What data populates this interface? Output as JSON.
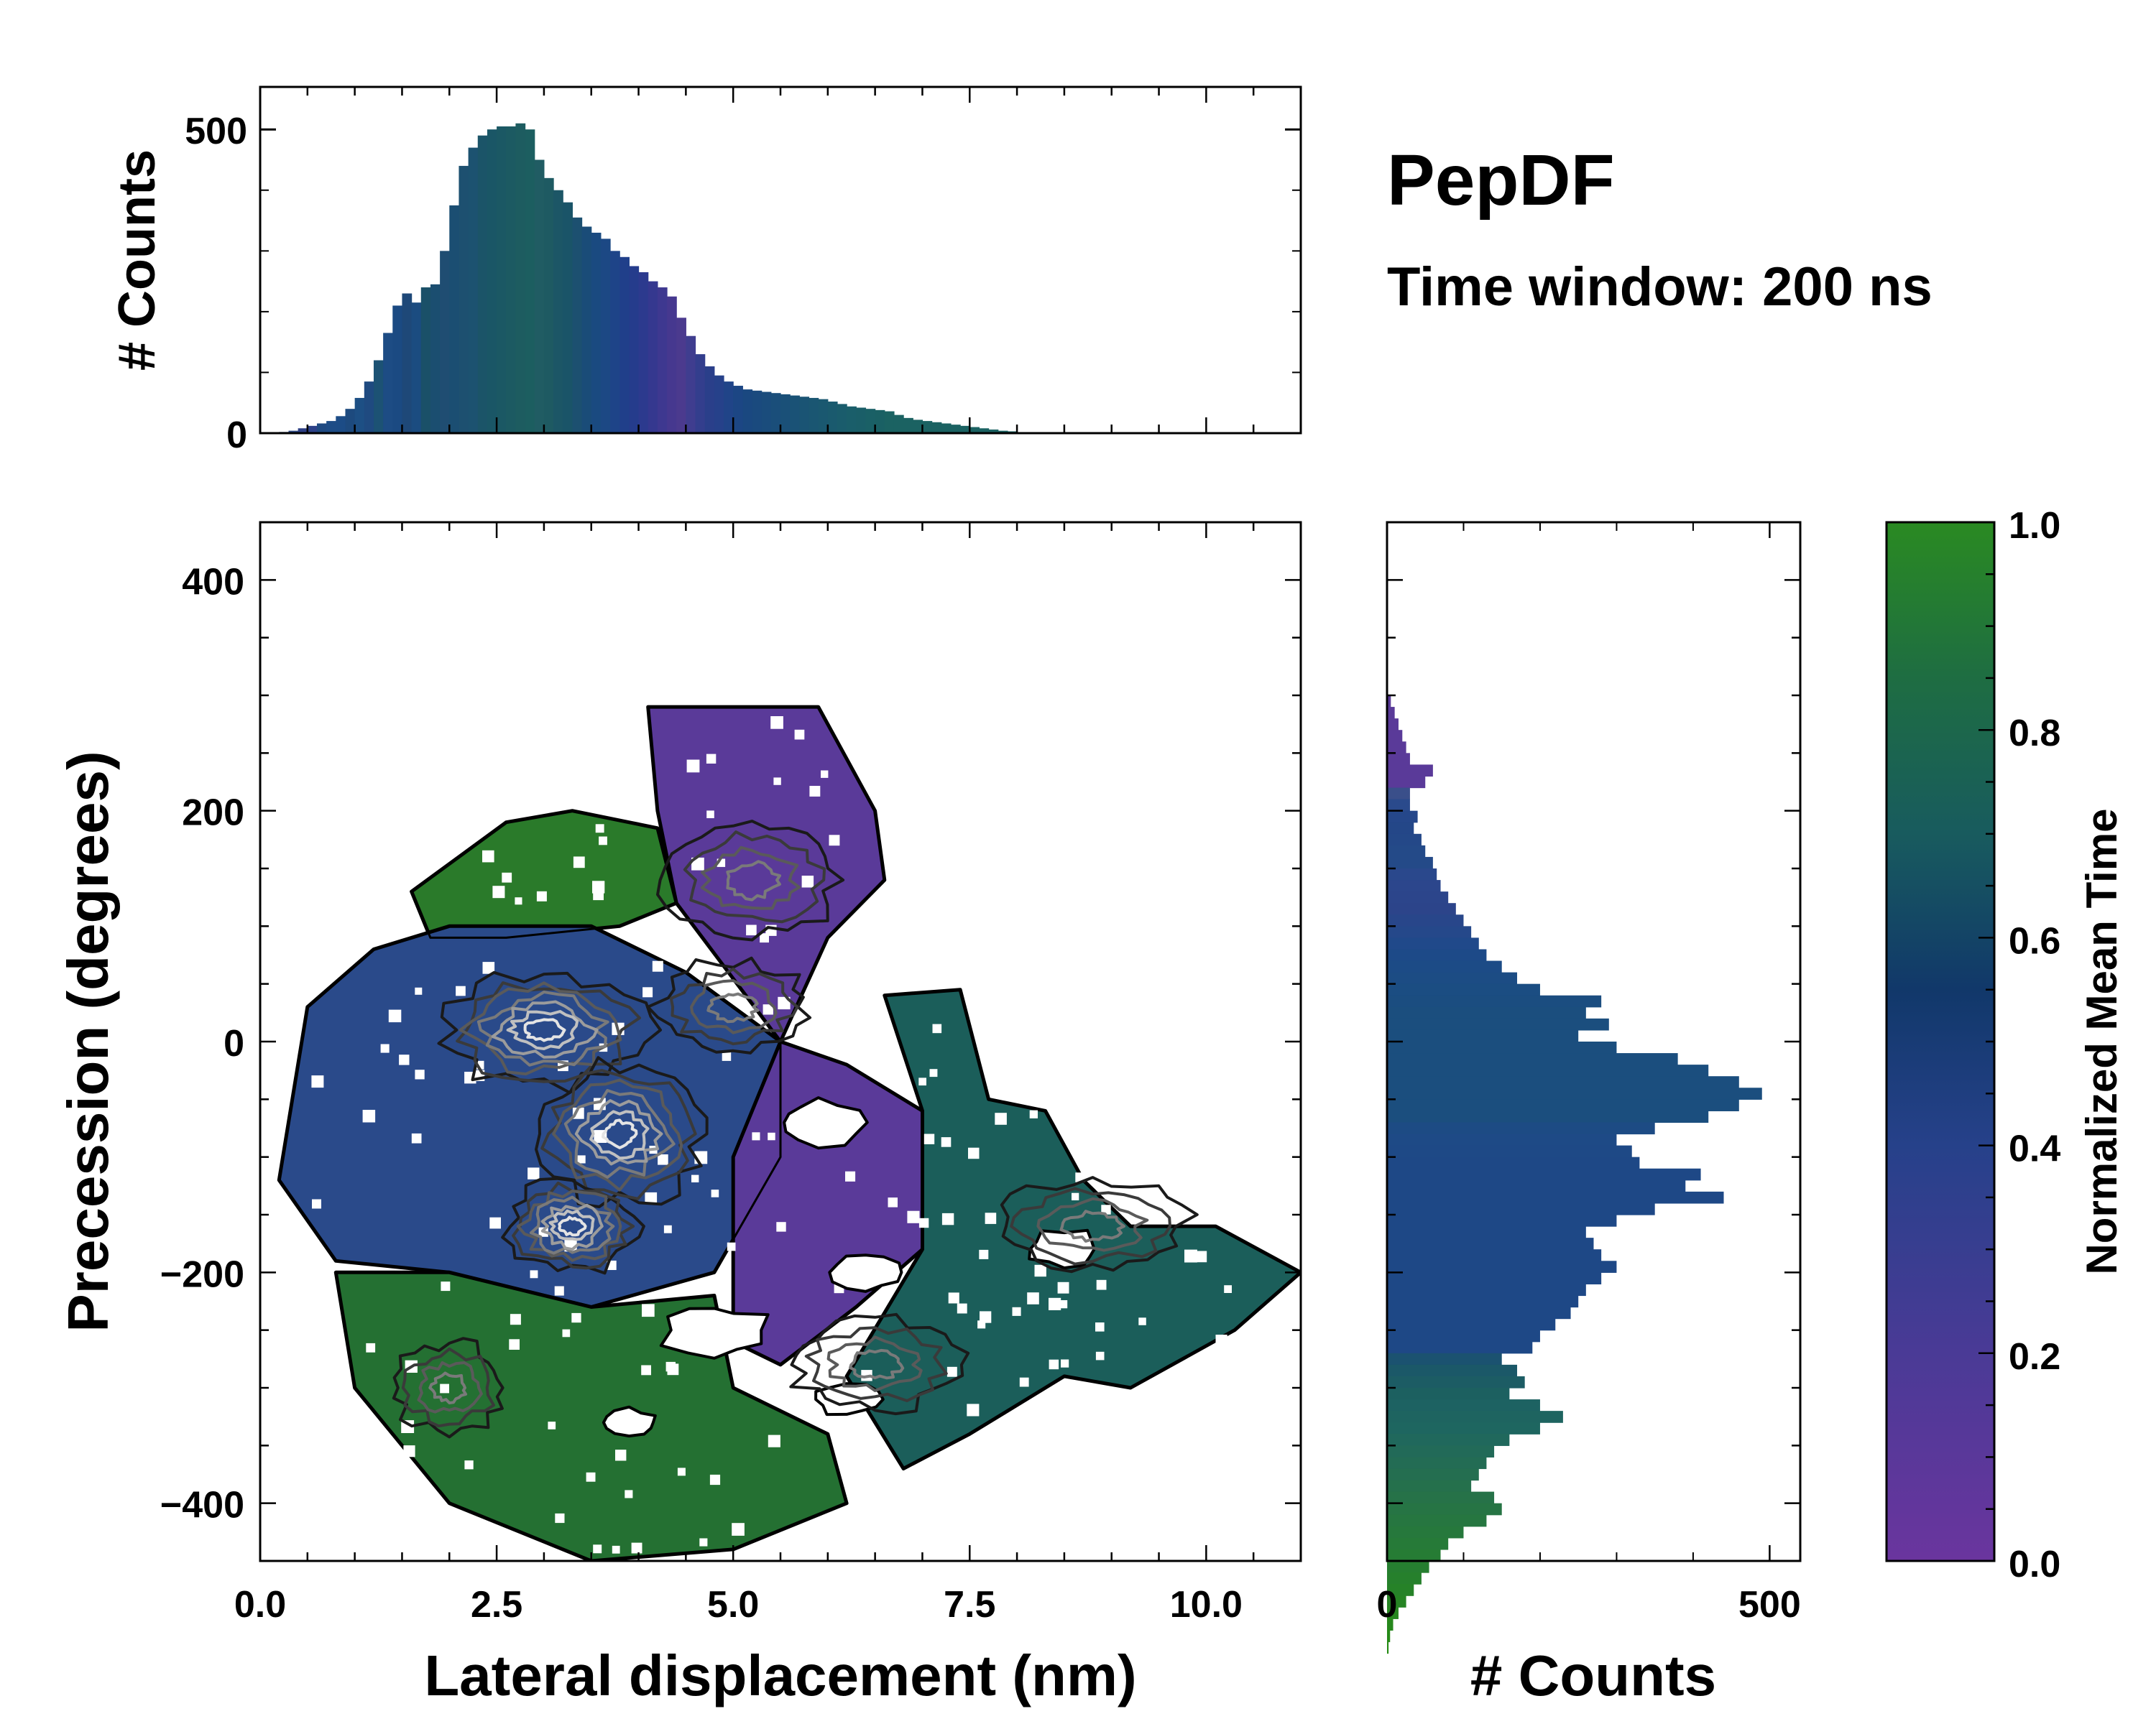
{
  "chart_data": [
    {
      "panel": "top-marginal",
      "type": "bar",
      "ylabel": "# Counts",
      "xlim": [
        0.0,
        11.0
      ],
      "ylim": [
        0,
        570
      ],
      "yticks": [
        {
          "v": 0,
          "label": "0"
        },
        {
          "v": 500,
          "label": "500"
        }
      ],
      "bin_edges_start": 0.2,
      "bin_width": 0.1,
      "values": [
        2,
        4,
        8,
        12,
        16,
        20,
        28,
        40,
        58,
        85,
        120,
        165,
        210,
        230,
        215,
        240,
        245,
        300,
        375,
        440,
        470,
        490,
        500,
        505,
        505,
        510,
        500,
        450,
        420,
        400,
        380,
        355,
        340,
        330,
        320,
        300,
        290,
        275,
        265,
        250,
        240,
        225,
        190,
        160,
        130,
        110,
        95,
        85,
        78,
        72,
        70,
        68,
        66,
        64,
        62,
        60,
        58,
        56,
        52,
        48,
        44,
        42,
        40,
        38,
        36,
        30,
        25,
        22,
        20,
        18,
        16,
        14,
        12,
        10,
        8,
        6,
        4,
        3
      ],
      "bar_colors": [
        "#3a4f8a",
        "#2f4a86",
        "#2c3e84",
        "#2d4188",
        "#1f4a82",
        "#1d4c86",
        "#1c4c86",
        "#1d4a7e",
        "#1d4f84",
        "#1f4a80",
        "#1c5274",
        "#1d4c84",
        "#1b4a82",
        "#1e4878",
        "#1b4c80",
        "#1a5068",
        "#1b4e70",
        "#1f4d72",
        "#1b4e72",
        "#1d5070",
        "#1c5270",
        "#1b5468",
        "#1a5666",
        "#1b5864",
        "#1c5a62",
        "#1d5c60",
        "#1c5e60",
        "#205c63",
        "#1e5a62",
        "#1c5666",
        "#1a5468",
        "#1c5070",
        "#1a4c78",
        "#1a4a80",
        "#1c4884",
        "#1e4488",
        "#203f8a",
        "#253c8c",
        "#2c3a8e",
        "#35388f",
        "#3e3890",
        "#46388f",
        "#4b3a8e",
        "#3f3d8f",
        "#333e8d",
        "#2a3f8a",
        "#26418a",
        "#204488",
        "#1c4684",
        "#1a4880",
        "#1a4a7e",
        "#1a4c7c",
        "#1a4e7a",
        "#1a5078",
        "#1a5276",
        "#1a5474",
        "#1a5672",
        "#1a5870",
        "#1a5a6e",
        "#1a5c6c",
        "#1a5e6a",
        "#1a5e68",
        "#1a6066",
        "#1a6064",
        "#1b6262",
        "#1b6262",
        "#1b6262",
        "#1b6262",
        "#1b6262",
        "#1b6262",
        "#1b6262",
        "#1b6262",
        "#1b6262",
        "#1b6262",
        "#1b6262",
        "#1b6262",
        "#1b6262",
        "#1b6262"
      ]
    },
    {
      "panel": "main-2d-histogram",
      "type": "heatmap",
      "xlabel": "Lateral displacement (nm)",
      "ylabel": "Precession (degrees)",
      "xlim": [
        0.0,
        11.0
      ],
      "ylim": [
        -450,
        450
      ],
      "xticks": [
        {
          "v": 0.0,
          "label": "0.0"
        },
        {
          "v": 2.5,
          "label": "2.5"
        },
        {
          "v": 5.0,
          "label": "5.0"
        },
        {
          "v": 7.5,
          "label": "7.5"
        },
        {
          "v": 10.0,
          "label": "10.0"
        }
      ],
      "yticks": [
        {
          "v": 400,
          "label": "400"
        },
        {
          "v": 200,
          "label": "200"
        },
        {
          "v": 0,
          "label": "0"
        },
        {
          "v": -200,
          "label": "−200"
        },
        {
          "v": -400,
          "label": "−400"
        }
      ],
      "color_by": "Normalized Mean Time",
      "regions": [
        {
          "name": "early-cluster-top",
          "time": 0.1,
          "color": "#5a3a99",
          "outline": [
            [
              4.1,
              290
            ],
            [
              5.9,
              290
            ],
            [
              6.5,
              200
            ],
            [
              6.6,
              140
            ],
            [
              6.0,
              90
            ],
            [
              5.5,
              0
            ],
            [
              4.4,
              120
            ],
            [
              4.2,
              200
            ]
          ]
        },
        {
          "name": "late-cluster-top-left",
          "time": 0.95,
          "color": "#2a7a2a",
          "outline": [
            [
              1.6,
              130
            ],
            [
              2.6,
              190
            ],
            [
              3.3,
              200
            ],
            [
              4.2,
              185
            ],
            [
              4.4,
              120
            ],
            [
              3.8,
              100
            ],
            [
              2.6,
              90
            ],
            [
              1.8,
              90
            ]
          ]
        },
        {
          "name": "central-mid-cluster",
          "time": 0.45,
          "color": "#2a4a8a",
          "outline": [
            [
              0.5,
              30
            ],
            [
              1.2,
              80
            ],
            [
              2.0,
              100
            ],
            [
              3.5,
              100
            ],
            [
              4.5,
              60
            ],
            [
              5.5,
              0
            ],
            [
              5.5,
              -100
            ],
            [
              4.8,
              -200
            ],
            [
              3.5,
              -230
            ],
            [
              2.0,
              -200
            ],
            [
              0.8,
              -190
            ],
            [
              0.2,
              -120
            ]
          ]
        },
        {
          "name": "early-cluster-middle",
          "time": 0.15,
          "color": "#5a3a99",
          "outline": [
            [
              5.5,
              0
            ],
            [
              6.2,
              -20
            ],
            [
              7.0,
              -60
            ],
            [
              7.0,
              -180
            ],
            [
              6.3,
              -230
            ],
            [
              5.5,
              -280
            ],
            [
              5.0,
              -260
            ],
            [
              5.0,
              -100
            ]
          ]
        },
        {
          "name": "late-cluster-bottom",
          "time": 0.9,
          "color": "#247032",
          "outline": [
            [
              0.8,
              -200
            ],
            [
              2.0,
              -200
            ],
            [
              3.5,
              -230
            ],
            [
              4.8,
              -220
            ],
            [
              5.0,
              -300
            ],
            [
              6.0,
              -340
            ],
            [
              6.2,
              -400
            ],
            [
              5.0,
              -440
            ],
            [
              3.5,
              -450
            ],
            [
              2.0,
              -400
            ],
            [
              1.0,
              -300
            ]
          ]
        },
        {
          "name": "mid-late-cluster-right",
          "time": 0.68,
          "color": "#1b5e5a",
          "outline": [
            [
              6.6,
              40
            ],
            [
              7.4,
              45
            ],
            [
              7.7,
              -50
            ],
            [
              8.3,
              -60
            ],
            [
              8.7,
              -120
            ],
            [
              9.2,
              -160
            ],
            [
              10.1,
              -160
            ],
            [
              11.0,
              -200
            ],
            [
              10.3,
              -250
            ],
            [
              9.2,
              -300
            ],
            [
              8.5,
              -290
            ],
            [
              7.5,
              -340
            ],
            [
              6.8,
              -370
            ],
            [
              6.2,
              -290
            ],
            [
              7.0,
              -180
            ],
            [
              7.0,
              -60
            ]
          ]
        }
      ],
      "contour_centers": [
        {
          "x": 3.0,
          "y": 10,
          "rx": 1.1,
          "ry": 50
        },
        {
          "x": 3.8,
          "y": -80,
          "rx": 0.9,
          "ry": 60
        },
        {
          "x": 3.3,
          "y": -160,
          "rx": 0.7,
          "ry": 40
        },
        {
          "x": 5.0,
          "y": 30,
          "rx": 0.8,
          "ry": 40
        },
        {
          "x": 5.2,
          "y": 140,
          "rx": 0.9,
          "ry": 50
        },
        {
          "x": 2.0,
          "y": -300,
          "rx": 0.6,
          "ry": 40
        },
        {
          "x": 6.5,
          "y": -280,
          "rx": 0.9,
          "ry": 40
        },
        {
          "x": 8.8,
          "y": -160,
          "rx": 1.0,
          "ry": 40
        }
      ]
    },
    {
      "panel": "right-marginal",
      "type": "bar",
      "orientation": "horizontal",
      "xlabel": "# Counts",
      "xlim": [
        0,
        540
      ],
      "ylim": [
        -450,
        450
      ],
      "xticks": [
        {
          "v": 0,
          "label": "0"
        },
        {
          "v": 500,
          "label": "500"
        }
      ],
      "bin_start": 300,
      "bin_step": -10,
      "values": [
        5,
        10,
        15,
        20,
        25,
        30,
        60,
        50,
        30,
        30,
        40,
        35,
        45,
        50,
        60,
        65,
        70,
        80,
        90,
        100,
        110,
        120,
        130,
        150,
        170,
        200,
        280,
        260,
        290,
        250,
        300,
        380,
        420,
        460,
        490,
        460,
        420,
        350,
        300,
        320,
        330,
        410,
        390,
        440,
        350,
        300,
        260,
        270,
        280,
        300,
        280,
        260,
        250,
        240,
        220,
        200,
        190,
        150,
        170,
        180,
        160,
        200,
        230,
        200,
        160,
        140,
        130,
        120,
        110,
        140,
        150,
        130,
        100,
        80,
        70,
        55,
        45,
        35,
        25,
        15,
        8,
        4,
        2
      ],
      "bar_colors": [
        "#5a3a99",
        "#5a3a99",
        "#5a3a99",
        "#5a3a99",
        "#5a3a99",
        "#5a3a99",
        "#5a3a99",
        "#5a3a99",
        "#3a4f8a",
        "#2a4a8c",
        "#25478a",
        "#244788",
        "#244888",
        "#244a88",
        "#244a88",
        "#2a488c",
        "#2c468c",
        "#2c458b",
        "#2c448a",
        "#28468a",
        "#25488a",
        "#20498a",
        "#1d4a88",
        "#1c4b86",
        "#1c4c84",
        "#1b4d82",
        "#1b4d80",
        "#1b4e7e",
        "#1b4e7e",
        "#1b4e7e",
        "#1b4e7e",
        "#1b4e7e",
        "#1b4e7e",
        "#1b4e7e",
        "#1b4e7e",
        "#1b4e7e",
        "#1b4e7e",
        "#1d4b84",
        "#1e4a86",
        "#1e4986",
        "#1e4886",
        "#1e4886",
        "#1e4886",
        "#1e4886",
        "#1e4886",
        "#1e4886",
        "#1e4886",
        "#1e4886",
        "#1e4886",
        "#1e4886",
        "#1e4886",
        "#1e4886",
        "#1e4886",
        "#1e4886",
        "#1e4886",
        "#1e4886",
        "#1e4886",
        "#1b5270",
        "#1b5868",
        "#1c5c64",
        "#1c6060",
        "#1d6262",
        "#1e6460",
        "#1e6660",
        "#20685c",
        "#226a58",
        "#236c54",
        "#246e50",
        "#25704c",
        "#267248",
        "#267444",
        "#267640",
        "#26783c",
        "#267a38",
        "#267c34",
        "#267e30",
        "#26802c",
        "#268228",
        "#268424",
        "#268620",
        "#26881c",
        "#268a18",
        "#268c14"
      ]
    }
  ],
  "title": {
    "main": "PepDF",
    "subtitle": "Time window: 200 ns"
  },
  "colorbar": {
    "label": "Normalized Mean Time",
    "range": [
      0.0,
      1.0
    ],
    "ticks": [
      {
        "v": 0.0,
        "label": "0.0"
      },
      {
        "v": 0.2,
        "label": "0.2"
      },
      {
        "v": 0.4,
        "label": "0.4"
      },
      {
        "v": 0.6,
        "label": "0.6"
      },
      {
        "v": 0.8,
        "label": "0.8"
      },
      {
        "v": 1.0,
        "label": "1.0"
      }
    ],
    "stops": [
      {
        "t": 0.0,
        "color": "#6a359e"
      },
      {
        "t": 0.2,
        "color": "#4a3a96"
      },
      {
        "t": 0.4,
        "color": "#26418a"
      },
      {
        "t": 0.55,
        "color": "#11386a"
      },
      {
        "t": 0.7,
        "color": "#185b5e"
      },
      {
        "t": 0.85,
        "color": "#1e6d42"
      },
      {
        "t": 1.0,
        "color": "#2a8a22"
      }
    ]
  }
}
